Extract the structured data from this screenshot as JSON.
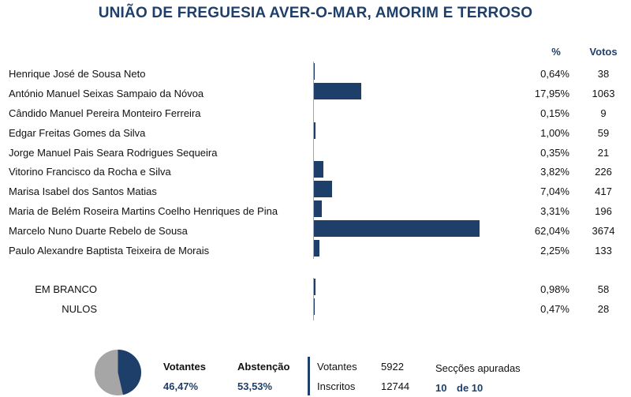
{
  "title": "UNIÃO DE FREGUESIA AVER-O-MAR, AMORIM E TERROSO",
  "headers": {
    "pct": "%",
    "votos": "Votos"
  },
  "chart_data": {
    "type": "bar",
    "orientation": "horizontal",
    "categories": [
      "Henrique José de Sousa Neto",
      "António Manuel Seixas Sampaio da Nóvoa",
      "Cândido Manuel Pereira Monteiro Ferreira",
      "Edgar Freitas Gomes da Silva",
      "Jorge Manuel Pais Seara Rodrigues Sequeira",
      "Vitorino Francisco da Rocha e Silva",
      "Marisa Isabel dos Santos Matias",
      "Maria de Belém Roseira Martins Coelho Henriques de Pina",
      "Marcelo Nuno Duarte Rebelo de Sousa",
      "Paulo Alexandre Baptista Teixeira de Morais",
      "EM BRANCO",
      "NULOS"
    ],
    "values": [
      0.64,
      17.95,
      0.15,
      1.0,
      0.35,
      3.82,
      7.04,
      3.31,
      62.04,
      2.25,
      0.98,
      0.47
    ],
    "pct_labels": [
      "0,64%",
      "17,95%",
      "0,15%",
      "1,00%",
      "0,35%",
      "3,82%",
      "7,04%",
      "3,31%",
      "62,04%",
      "2,25%",
      "0,98%",
      "0,47%"
    ],
    "votes": [
      "38",
      "1063",
      "9",
      "59",
      "21",
      "226",
      "417",
      "196",
      "3674",
      "133",
      "58",
      "28"
    ],
    "xlim": [
      0,
      62.04
    ],
    "color": "#1f3f6b"
  },
  "summary": {
    "pie": {
      "votantes_fraction": 0.4647,
      "votantes_color": "#1f3f6b",
      "abstencao_color": "#a6a6a6"
    },
    "votantes_label": "Votantes",
    "votantes_pct": "46,47%",
    "abstencao_label": "Abstenção",
    "abstencao_pct": "53,53%",
    "votantes_count_label": "Votantes",
    "votantes_count": "5922",
    "inscritos_label": "Inscritos",
    "inscritos_count": "12744",
    "seccoes_label": "Secções apuradas",
    "seccoes_done": "10",
    "seccoes_total": "de 10"
  }
}
